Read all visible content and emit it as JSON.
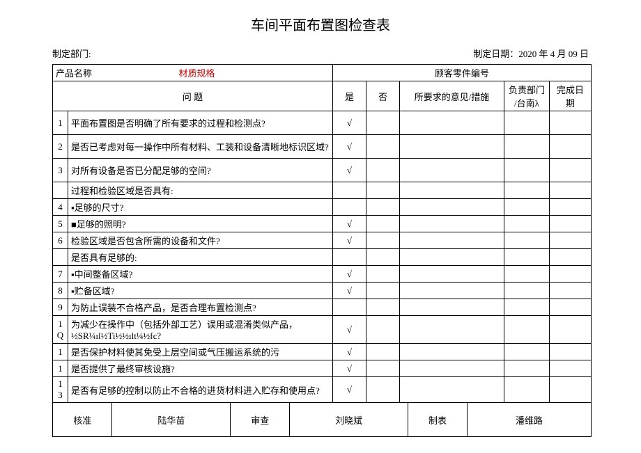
{
  "title": "车间平面布置图检查表",
  "meta": {
    "dept_label": "制定部门:",
    "date_label": "制定日期：",
    "date_value": "2020 年 4 月 09 日"
  },
  "header1": {
    "product_name_label": "产品名称",
    "material_spec_label": "材质规格",
    "customer_part_label": "顾客零件编号"
  },
  "header2": {
    "question_label": "问    题",
    "yes_label": "是",
    "no_label": "否",
    "opinion_label": "所要求的意见/措施",
    "dept_label_l1": "负责部门",
    "dept_label_l2": "/台南λ",
    "done_label": "完成日期"
  },
  "rows": [
    {
      "n": "1",
      "q": "平面布置图是否明确了所有要求的过程和检测点?",
      "yes": "√",
      "tall": true
    },
    {
      "n": "2",
      "q": "是否已考虑对每一操作中所有材料、工装和设备清晰地标识区域?",
      "yes": "√",
      "tall": true
    },
    {
      "n": "3",
      "q": "对所有设备是否已分配足够的空间?",
      "yes": "√",
      "tall": true
    },
    {
      "section": "过程和检验区域是否具有:"
    },
    {
      "n": "4",
      "q": "▪足够的尺寸?",
      "yes": ""
    },
    {
      "n": "5",
      "q": "■足够的照明?",
      "yes": "√"
    },
    {
      "n": "6",
      "q": "检验区域是否包含所需的设备和文件?",
      "yes": "√"
    },
    {
      "section": "是否具有足够的:"
    },
    {
      "n": "7",
      "q": "▪中间整备区域?",
      "yes": "√"
    },
    {
      "n": "8",
      "q": "▪贮备区域?",
      "yes": "√"
    },
    {
      "n": "9",
      "q": "为防止误装不合格产品，是否合理布置检测点?",
      "yes": ""
    },
    {
      "n": "1\nQ",
      "q": "为减少在操作中（包括外部工艺）误用或混淆类似产品，½SR¼ıl½Ti½½ılt¼½fc?",
      "yes": "√",
      "tall": true
    },
    {
      "n": "1",
      "q": "是否保护材料使其免受上层空间或气压搬运系统的污",
      "yes": "√"
    },
    {
      "n": "1",
      "q": "是否提供了最终审核设施?",
      "yes": "√"
    },
    {
      "n": "1\n3",
      "q": "是否有足够的控制以防止不合格的进货材料进入贮存和使用点?",
      "yes": "√",
      "tall": true
    }
  ],
  "sig": {
    "approve_label": "核准",
    "approve_name": "陆华苗",
    "review_label": "审查",
    "review_name": "刘晓斌",
    "prepare_label": "制表",
    "prepare_name": "潘维路"
  }
}
